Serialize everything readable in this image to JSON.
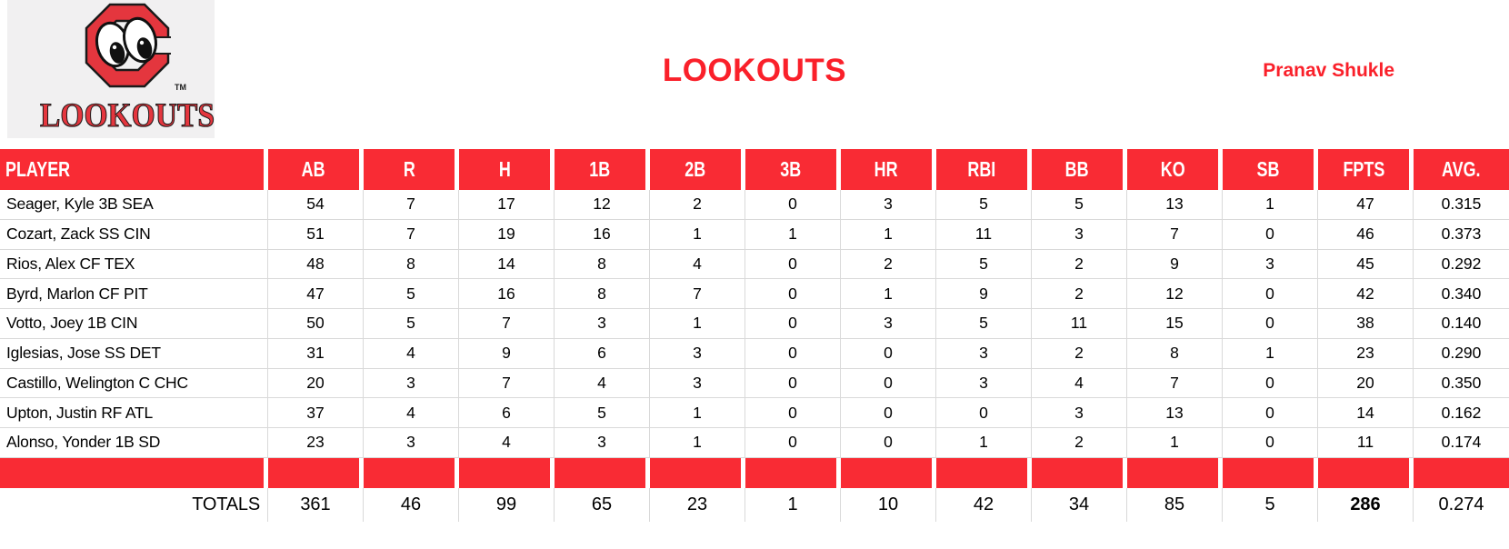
{
  "page": {
    "title": "LOOKOUTS",
    "owner": "Pranav Shukle"
  },
  "logo": {
    "wordmark": "LOOKOUTS",
    "tm": "TM"
  },
  "colors": {
    "red": "#F92B34",
    "title_red": "#FA202A",
    "grid": "#D9D9D9",
    "logo_bg": "#F1F0F1",
    "logo_red": "#E4363E"
  },
  "table": {
    "columns": [
      "PLAYER",
      "AB",
      "R",
      "H",
      "1B",
      "2B",
      "3B",
      "HR",
      "RBI",
      "BB",
      "KO",
      "SB",
      "FPTS",
      "AVG."
    ],
    "rows": [
      {
        "player": "Seager, Kyle 3B SEA",
        "stats": [
          54,
          7,
          17,
          12,
          2,
          0,
          3,
          5,
          5,
          13,
          1,
          47,
          "0.315"
        ]
      },
      {
        "player": "Cozart, Zack SS CIN",
        "stats": [
          51,
          7,
          19,
          16,
          1,
          1,
          1,
          11,
          3,
          7,
          0,
          46,
          "0.373"
        ]
      },
      {
        "player": "Rios, Alex CF TEX",
        "stats": [
          48,
          8,
          14,
          8,
          4,
          0,
          2,
          5,
          2,
          9,
          3,
          45,
          "0.292"
        ]
      },
      {
        "player": "Byrd, Marlon CF PIT",
        "stats": [
          47,
          5,
          16,
          8,
          7,
          0,
          1,
          9,
          2,
          12,
          0,
          42,
          "0.340"
        ]
      },
      {
        "player": "Votto, Joey 1B CIN",
        "stats": [
          50,
          5,
          7,
          3,
          1,
          0,
          3,
          5,
          11,
          15,
          0,
          38,
          "0.140"
        ]
      },
      {
        "player": "Iglesias, Jose SS DET",
        "stats": [
          31,
          4,
          9,
          6,
          3,
          0,
          0,
          3,
          2,
          8,
          1,
          23,
          "0.290"
        ]
      },
      {
        "player": "Castillo, Welington C CHC",
        "stats": [
          20,
          3,
          7,
          4,
          3,
          0,
          0,
          3,
          4,
          7,
          0,
          20,
          "0.350"
        ]
      },
      {
        "player": "Upton, Justin RF ATL",
        "stats": [
          37,
          4,
          6,
          5,
          1,
          0,
          0,
          0,
          3,
          13,
          0,
          14,
          "0.162"
        ]
      },
      {
        "player": "Alonso, Yonder 1B SD",
        "stats": [
          23,
          3,
          4,
          3,
          1,
          0,
          0,
          1,
          2,
          1,
          0,
          11,
          "0.174"
        ]
      }
    ],
    "totals": {
      "label": "TOTALS",
      "stats": [
        361,
        46,
        99,
        65,
        23,
        1,
        10,
        42,
        34,
        85,
        5,
        286,
        "0.274"
      ]
    }
  }
}
